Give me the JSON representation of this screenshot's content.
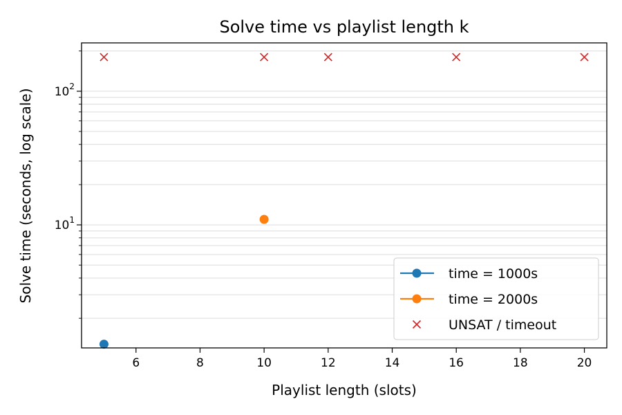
{
  "chart_data": {
    "type": "scatter",
    "title": "Solve time vs playlist length k",
    "xlabel": "Playlist length (slots)",
    "ylabel": "Solve time (seconds, log scale)",
    "xlim": [
      4.3,
      20.7
    ],
    "ylim": [
      1.2,
      230
    ],
    "yscale": "log",
    "xticks": [
      6,
      8,
      10,
      12,
      14,
      16,
      18,
      20
    ],
    "yticks": [
      {
        "value": 10,
        "label": "10^1"
      },
      {
        "value": 100,
        "label": "10^2"
      }
    ],
    "grid": "y-major-and-minor",
    "legend_position": "lower-right",
    "series": [
      {
        "name": "time = 1000s",
        "color": "#1f77b4",
        "marker": "circle",
        "legend_style": "line-marker",
        "points": [
          {
            "x": 5,
            "y": 1.28
          }
        ]
      },
      {
        "name": "time = 2000s",
        "color": "#ff7f0e",
        "marker": "circle",
        "legend_style": "line-marker",
        "points": [
          {
            "x": 10,
            "y": 11
          }
        ]
      },
      {
        "name": "UNSAT / timeout",
        "color": "#d62728",
        "marker": "x",
        "legend_style": "marker-only",
        "points": [
          {
            "x": 5,
            "y": 180
          },
          {
            "x": 10,
            "y": 180
          },
          {
            "x": 12,
            "y": 180
          },
          {
            "x": 16,
            "y": 180
          },
          {
            "x": 20,
            "y": 180
          }
        ]
      }
    ]
  }
}
